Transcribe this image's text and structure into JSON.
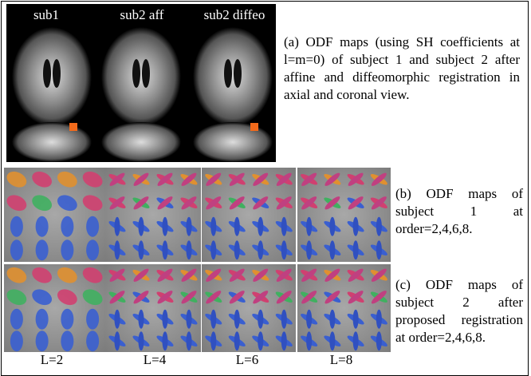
{
  "panel_a": {
    "labels": [
      "sub1",
      "sub2 aff",
      "sub2 diffeo"
    ],
    "caption": "(a) ODF maps (using SH coefficients at l=m=0) of subject 1 and subject 2 after affine and diffeomorphic registration in axial and coronal view."
  },
  "panel_b": {
    "caption": "(b) ODF maps of subject 1 at order=2,4,6,8."
  },
  "panel_c": {
    "caption": "(c) ODF maps of subject 2 after proposed registration at order=2,4,6,8."
  },
  "order_labels": [
    "L=2",
    "L=4",
    "L=6",
    "L=8"
  ]
}
